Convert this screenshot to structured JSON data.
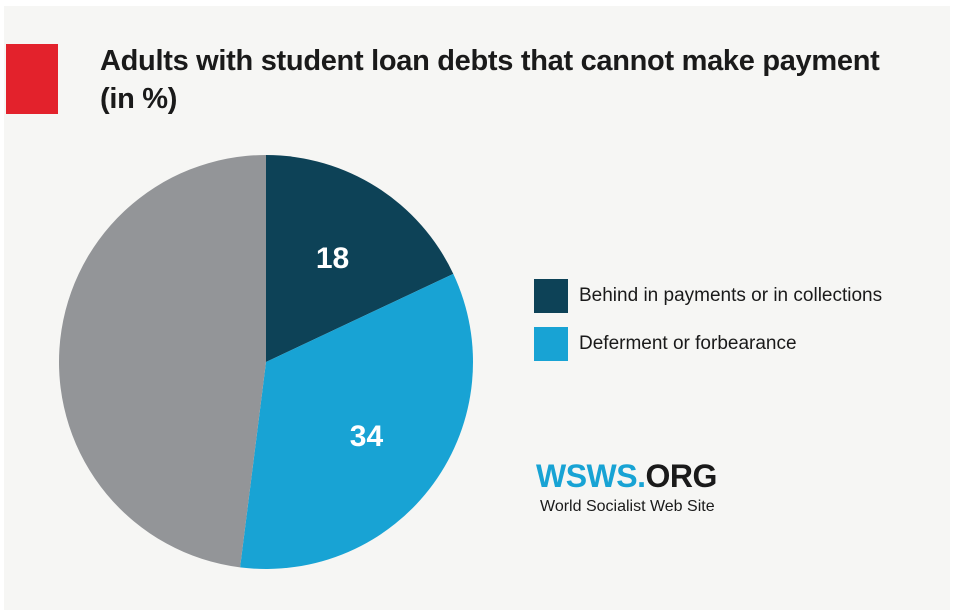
{
  "title_line1": "Adults with student loan debts that cannot make payment",
  "title_line2": "(in %)",
  "colors": {
    "accent": "#e3222c",
    "behind": "#0d4257",
    "deferment": "#18a3d4",
    "remainder": "#939598",
    "brand_primary": "#18a3d4",
    "brand_secondary": "#1a1a1a",
    "background": "#f6f6f4"
  },
  "chart_data": {
    "type": "pie",
    "slices": [
      {
        "name": "Behind in payments or in collections",
        "value": 18,
        "label": "18",
        "color": "#0d4257",
        "in_legend": true
      },
      {
        "name": "Deferment or forbearance",
        "value": 34,
        "label": "34",
        "color": "#18a3d4",
        "in_legend": true
      },
      {
        "name": "",
        "value": 48,
        "label": "",
        "color": "#939598",
        "in_legend": false
      }
    ],
    "legend_position": "right"
  },
  "legend": {
    "items": [
      {
        "label": "Behind in payments or in collections",
        "color": "#0d4257"
      },
      {
        "label": "Deferment or forbearance",
        "color": "#18a3d4"
      }
    ]
  },
  "brand": {
    "logo_primary": "WSWS.",
    "logo_secondary": "ORG",
    "tagline": "World Socialist Web Site"
  }
}
